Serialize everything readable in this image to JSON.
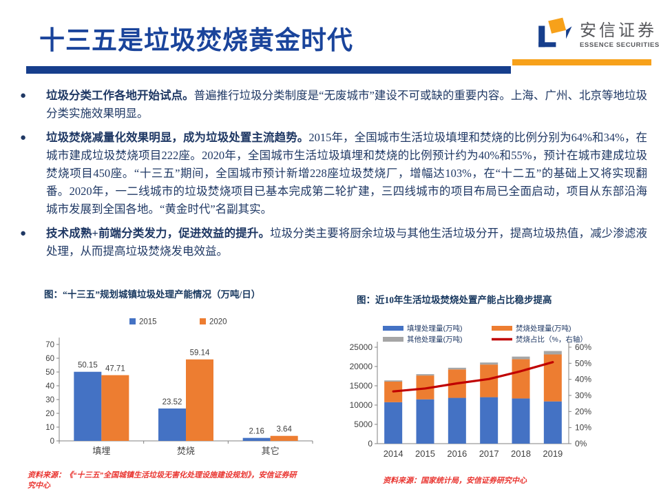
{
  "header": {
    "title": "十三五是垃圾焚烧黄金时代",
    "brand": {
      "name": "安信证券",
      "subtitle": "ESSENCE SECURITIES"
    },
    "colors": {
      "title_blue": "#1A449B",
      "divider_blue": "#163E8C",
      "divider_orange": "#F7A11A"
    }
  },
  "bullets": [
    {
      "lead": "垃圾分类工作各地开始试点。",
      "rest": "普遍推行垃圾分类制度是“无废城市”建设不可或缺的重要内容。上海、广州、北京等地垃圾分类实施效果明显。"
    },
    {
      "lead": "垃圾焚烧减量化效果明显，成为垃圾处置主流趋势。",
      "rest": "2015年，全国城市生活垃圾填埋和焚烧的比例分别为64%和34%，在城市建成垃圾焚烧项目222座。2020年，全国城市生活垃圾填埋和焚烧的比例预计约为40%和55%，预计在城市建成垃圾焚烧项目450座。“十三五”期间，全国城市预计新增228座垃圾焚烧厂，增幅达103%，在“十二五”的基础上又将实现翻番。2020年，一二线城市的垃圾焚烧项目已基本完成第二轮扩建，三四线城市的项目布局已全面启动，项目从东部沿海城市发展到全国各地。“黄金时代”名副其实。"
    },
    {
      "lead": "技术成熟+前端分类发力，促进效益的提升。",
      "rest": "垃圾分类主要将厨余垃圾与其他生活垃圾分开，提高垃圾热值，减少渗滤液处理，从而提高垃圾焚烧发电效益。"
    }
  ],
  "chart_data": [
    {
      "type": "bar",
      "title": "图：“十三五”规划城镇垃圾处理产能情况（万吨/日）",
      "source": "资料来源：《“十三五”全国城镇生活垃圾无害化处理设施建设规划》，安信证券研究中心",
      "categories": [
        "填埋",
        "焚烧",
        "其它"
      ],
      "series": [
        {
          "name": "2015",
          "color": "#4472C4",
          "values": [
            50.15,
            23.52,
            2.16
          ]
        },
        {
          "name": "2020",
          "color": "#ED7D31",
          "values": [
            47.71,
            59.14,
            3.64
          ]
        }
      ],
      "ylim": [
        0,
        70
      ],
      "ytick_step": 10,
      "grid": false,
      "legend_position": "top",
      "data_labels": true
    },
    {
      "type": "bar",
      "subtype": "stacked-with-line",
      "title": "图：近10年生活垃圾焚烧处置产能占比稳步提高",
      "source": "资料来源：国家统计局，安信证券研究中心",
      "categories": [
        "2014",
        "2015",
        "2016",
        "2017",
        "2018",
        "2019"
      ],
      "series": [
        {
          "name": "填埋处理量(万吨)",
          "color": "#4472C4",
          "values": [
            10744,
            11483,
            11866,
            12038,
            11706,
            10948
          ]
        },
        {
          "name": "焚烧处理量(万吨)",
          "color": "#ED7D31",
          "values": [
            5330,
            6176,
            7378,
            8463,
            10185,
            12174
          ]
        },
        {
          "name": "其他处理量(万吨)",
          "color": "#A6A6A6",
          "values": [
            320,
            354,
            430,
            534,
            675,
            891
          ]
        }
      ],
      "line_series": {
        "name": "焚烧占比（%，右轴）",
        "color": "#C00000",
        "axis": "right",
        "values": [
          32.5,
          34.3,
          37.5,
          40.2,
          45.1,
          50.7
        ]
      },
      "left_ylim": [
        0,
        25000
      ],
      "left_ytick_step": 5000,
      "right_ylim": [
        0,
        60
      ],
      "right_ytick_step": 10,
      "right_unit": "%",
      "grid": false,
      "legend_position": "top"
    }
  ]
}
